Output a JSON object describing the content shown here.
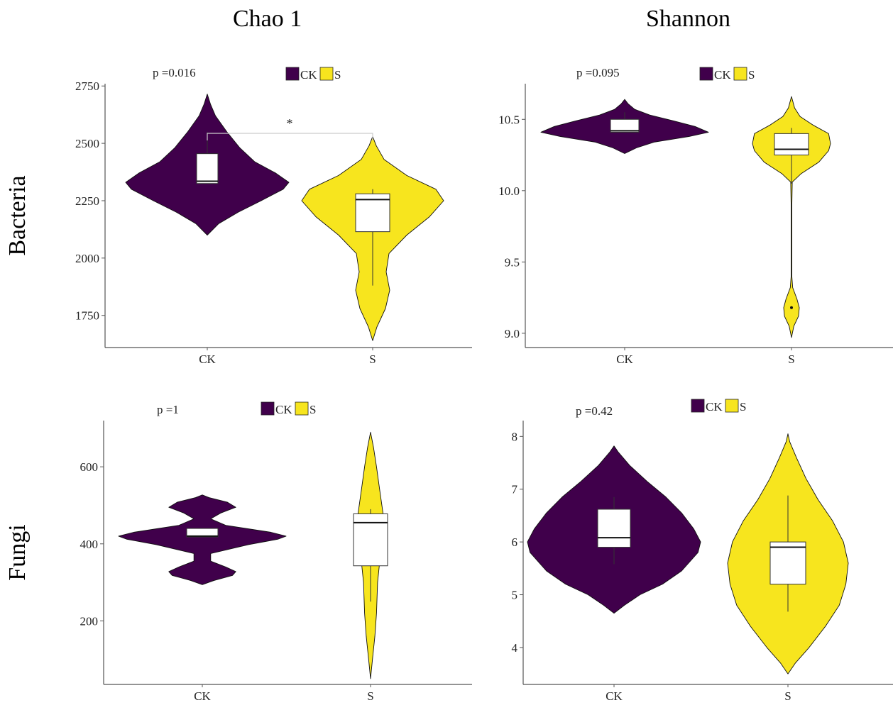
{
  "column_titles": [
    "Chao 1",
    "Shannon"
  ],
  "row_titles": [
    "Bacteria",
    "Fungi"
  ],
  "colors": {
    "CK": "#40004b",
    "S": "#f7e51e",
    "box": "#ffffff",
    "axis": "#555555",
    "bracket": "#cccccc"
  },
  "chart_data": [
    {
      "type": "violin",
      "metric": "Chao 1",
      "organism": "Bacteria",
      "pvalue_label": "p =0.016",
      "significance": "*",
      "legend": [
        "CK",
        "S"
      ],
      "legend_placement": "top-center",
      "categories": [
        "CK",
        "S"
      ],
      "ylim": [
        1610,
        2760
      ],
      "yticks": [
        1750,
        2000,
        2250,
        2500,
        2750
      ],
      "series": [
        {
          "name": "CK",
          "box": {
            "q1": 2325,
            "median": 2335,
            "q3": 2455,
            "whisker_low": 2325,
            "whisker_high": 2550
          },
          "violin": [
            [
              2100,
              0.0
            ],
            [
              2150,
              0.14
            ],
            [
              2200,
              0.38
            ],
            [
              2250,
              0.66
            ],
            [
              2300,
              0.93
            ],
            [
              2330,
              1.0
            ],
            [
              2370,
              0.84
            ],
            [
              2420,
              0.58
            ],
            [
              2480,
              0.4
            ],
            [
              2550,
              0.24
            ],
            [
              2620,
              0.1
            ],
            [
              2670,
              0.04
            ],
            [
              2715,
              0.0
            ]
          ]
        },
        {
          "name": "S",
          "box": {
            "q1": 2115,
            "median": 2255,
            "q3": 2280,
            "whisker_low": 1880,
            "whisker_high": 2300
          },
          "violin": [
            [
              1640,
              0.0
            ],
            [
              1700,
              0.06
            ],
            [
              1780,
              0.18
            ],
            [
              1860,
              0.24
            ],
            [
              1940,
              0.19
            ],
            [
              2020,
              0.23
            ],
            [
              2100,
              0.48
            ],
            [
              2180,
              0.8
            ],
            [
              2250,
              1.0
            ],
            [
              2300,
              0.89
            ],
            [
              2360,
              0.48
            ],
            [
              2430,
              0.16
            ],
            [
              2490,
              0.05
            ],
            [
              2530,
              0.0
            ]
          ]
        }
      ]
    },
    {
      "type": "violin",
      "metric": "Shannon",
      "organism": "Bacteria",
      "pvalue_label": "p =0.095",
      "legend": [
        "CK",
        "S"
      ],
      "legend_placement": "top-center",
      "categories": [
        "CK",
        "S"
      ],
      "ylim": [
        8.9,
        10.75
      ],
      "yticks": [
        "9.0",
        "9.5",
        "10.0",
        "10.5"
      ],
      "series": [
        {
          "name": "CK",
          "box": {
            "q1": 10.41,
            "median": 10.42,
            "q3": 10.5,
            "whisker_low": 10.41,
            "whisker_high": 10.55
          },
          "violin": [
            [
              10.26,
              0.0
            ],
            [
              10.3,
              0.14
            ],
            [
              10.34,
              0.35
            ],
            [
              10.38,
              0.77
            ],
            [
              10.41,
              1.0
            ],
            [
              10.45,
              0.84
            ],
            [
              10.49,
              0.58
            ],
            [
              10.53,
              0.3
            ],
            [
              10.57,
              0.12
            ],
            [
              10.61,
              0.04
            ],
            [
              10.64,
              0.0
            ]
          ]
        },
        {
          "name": "S",
          "box": {
            "q1": 10.25,
            "median": 10.29,
            "q3": 10.4,
            "whisker_low": 10.05,
            "whisker_high": 10.44
          },
          "violin": [
            [
              8.97,
              0.0
            ],
            [
              9.05,
              0.06
            ],
            [
              9.12,
              0.18
            ],
            [
              9.18,
              0.2
            ],
            [
              9.24,
              0.14
            ],
            [
              9.32,
              0.03
            ],
            [
              9.4,
              0.01
            ],
            [
              9.6,
              0.01
            ],
            [
              9.9,
              0.01
            ],
            [
              10.06,
              0.02
            ],
            [
              10.12,
              0.25
            ],
            [
              10.2,
              0.7
            ],
            [
              10.28,
              0.95
            ],
            [
              10.33,
              1.0
            ],
            [
              10.4,
              0.95
            ],
            [
              10.46,
              0.55
            ],
            [
              10.52,
              0.22
            ],
            [
              10.58,
              0.08
            ],
            [
              10.66,
              0.0
            ]
          ]
        }
      ]
    },
    {
      "type": "violin",
      "metric": "Chao 1",
      "organism": "Fungi",
      "pvalue_label": "p =1",
      "legend": [
        "CK",
        "S"
      ],
      "legend_placement": "top-center",
      "categories": [
        "CK",
        "S"
      ],
      "ylim": [
        35,
        720
      ],
      "yticks": [
        200,
        400,
        600
      ],
      "series": [
        {
          "name": "CK",
          "box": {
            "q1": 418,
            "median": 420,
            "q3": 440,
            "whisker_low": 418,
            "whisker_high": 440
          },
          "violin": [
            [
              294,
              0.0
            ],
            [
              305,
              0.14
            ],
            [
              318,
              0.36
            ],
            [
              328,
              0.4
            ],
            [
              340,
              0.28
            ],
            [
              355,
              0.1
            ],
            [
              375,
              0.1
            ],
            [
              398,
              0.55
            ],
            [
              412,
              0.9
            ],
            [
              420,
              1.0
            ],
            [
              430,
              0.82
            ],
            [
              448,
              0.28
            ],
            [
              465,
              0.1
            ],
            [
              480,
              0.22
            ],
            [
              495,
              0.4
            ],
            [
              508,
              0.3
            ],
            [
              520,
              0.08
            ],
            [
              527,
              0.0
            ]
          ]
        },
        {
          "name": "S",
          "box": {
            "q1": 343,
            "median": 455,
            "q3": 478,
            "whisker_low": 250,
            "whisker_high": 490
          },
          "violin": [
            [
              50,
              0.0
            ],
            [
              100,
              0.07
            ],
            [
              160,
              0.16
            ],
            [
              220,
              0.22
            ],
            [
              300,
              0.26
            ],
            [
              380,
              0.38
            ],
            [
              440,
              0.45
            ],
            [
              480,
              0.46
            ],
            [
              540,
              0.34
            ],
            [
              600,
              0.22
            ],
            [
              650,
              0.11
            ],
            [
              690,
              0.0
            ]
          ]
        }
      ]
    },
    {
      "type": "violin",
      "metric": "Shannon",
      "organism": "Fungi",
      "pvalue_label": "p =0.42",
      "legend": [
        "CK",
        "S"
      ],
      "legend_placement": "top-center",
      "categories": [
        "CK",
        "S"
      ],
      "ylim": [
        3.3,
        8.3
      ],
      "yticks": [
        4,
        5,
        6,
        7,
        8
      ],
      "series": [
        {
          "name": "CK",
          "box": {
            "q1": 5.9,
            "median": 6.08,
            "q3": 6.62,
            "whisker_low": 5.58,
            "whisker_high": 6.85
          },
          "violin": [
            [
              4.65,
              0.0
            ],
            [
              4.8,
              0.12
            ],
            [
              5.0,
              0.3
            ],
            [
              5.2,
              0.56
            ],
            [
              5.45,
              0.78
            ],
            [
              5.8,
              0.97
            ],
            [
              6.0,
              1.0
            ],
            [
              6.25,
              0.92
            ],
            [
              6.55,
              0.78
            ],
            [
              6.85,
              0.6
            ],
            [
              7.15,
              0.38
            ],
            [
              7.45,
              0.18
            ],
            [
              7.7,
              0.05
            ],
            [
              7.82,
              0.0
            ]
          ]
        },
        {
          "name": "S",
          "box": {
            "q1": 5.2,
            "median": 5.9,
            "q3": 6.0,
            "whisker_low": 4.68,
            "whisker_high": 6.88
          },
          "violin": [
            [
              3.5,
              0.0
            ],
            [
              3.7,
              0.12
            ],
            [
              4.0,
              0.35
            ],
            [
              4.4,
              0.62
            ],
            [
              4.8,
              0.85
            ],
            [
              5.2,
              0.96
            ],
            [
              5.6,
              1.0
            ],
            [
              6.0,
              0.92
            ],
            [
              6.4,
              0.74
            ],
            [
              6.8,
              0.5
            ],
            [
              7.2,
              0.3
            ],
            [
              7.6,
              0.14
            ],
            [
              7.9,
              0.03
            ],
            [
              8.05,
              0.0
            ]
          ]
        }
      ]
    }
  ]
}
